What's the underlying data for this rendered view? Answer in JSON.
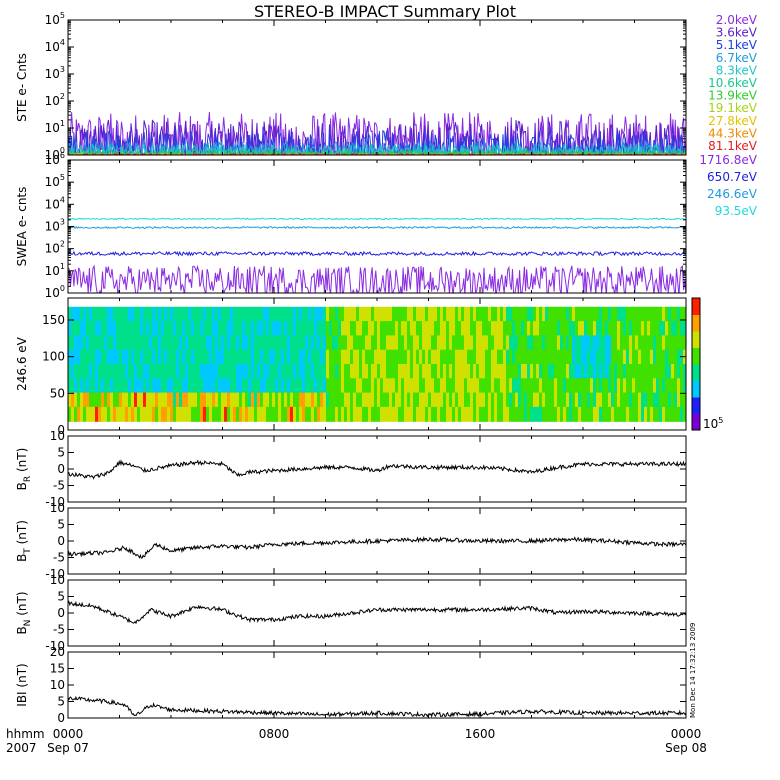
{
  "title": "STEREO-B IMPACT Summary Plot",
  "time_axis": {
    "label_top": "hhmm",
    "label_bottom": "2007",
    "ticks": [
      {
        "t": 0,
        "hhmm": "0000",
        "date": "Sep 07"
      },
      {
        "t": 8,
        "hhmm": "0800",
        "date": ""
      },
      {
        "t": 16,
        "hhmm": "1600",
        "date": ""
      },
      {
        "t": 24,
        "hhmm": "0000",
        "date": "Sep 08"
      }
    ],
    "range_hours": [
      0,
      24
    ]
  },
  "timestamp": "Mon Dec 14 17:32:13 2009",
  "colors": {
    "s_2_0": "#8a2be2",
    "s_3_6": "#5a1fcc",
    "s_5_1": "#1f3fe0",
    "s_6_7": "#1e9be0",
    "s_8_3": "#1fc8c8",
    "s_10_6": "#18c890",
    "s_13_9": "#2ecc2e",
    "s_19_1": "#a8d018",
    "s_27_8": "#e8c000",
    "s_44_3": "#f08a00",
    "s_81_1": "#e02020",
    "w_1716": "#8a2be2",
    "w_650": "#1f1fe0",
    "w_246": "#1e9be0",
    "w_93": "#1fd8d8"
  },
  "chart_data": [
    {
      "type": "line",
      "panel": "STE",
      "ylabel": "STE e- Cnts",
      "yscale": "log",
      "ylim": [
        1,
        100000
      ],
      "yticks": [
        {
          "v": 1,
          "base": "10",
          "exp": "0"
        },
        {
          "v": 10,
          "base": "10",
          "exp": "1"
        },
        {
          "v": 100,
          "base": "10",
          "exp": "2"
        },
        {
          "v": 1000,
          "base": "10",
          "exp": "3"
        },
        {
          "v": 10000,
          "base": "10",
          "exp": "4"
        },
        {
          "v": 100000,
          "base": "10",
          "exp": "5"
        }
      ],
      "series": [
        {
          "name": "2.0keV",
          "color": "#8a2be2",
          "level": 2.5,
          "noise": 1.2
        },
        {
          "name": "3.6keV",
          "color": "#5a1fcc",
          "level": 2.0,
          "noise": 1.0
        },
        {
          "name": "5.1keV",
          "color": "#1f3fe0",
          "level": 1.6,
          "noise": 0.7
        },
        {
          "name": "6.7keV",
          "color": "#1e9be0",
          "level": 1.3,
          "noise": 0.4
        },
        {
          "name": "8.3keV",
          "color": "#1fc8c8",
          "level": 1.2,
          "noise": 0.3
        },
        {
          "name": "10.6keV",
          "color": "#18c890",
          "level": 1.1,
          "noise": 0.2
        },
        {
          "name": "13.9keV",
          "color": "#2ecc2e",
          "level": 1.05,
          "noise": 0.1
        },
        {
          "name": "19.1keV",
          "color": "#a8d018",
          "level": 1.0,
          "noise": 0.05
        },
        {
          "name": "27.8keV",
          "color": "#e8c000",
          "level": 1.0,
          "noise": 0.05
        },
        {
          "name": "44.3keV",
          "color": "#f08a00",
          "level": 1.0,
          "noise": 0.05
        },
        {
          "name": "81.1keV",
          "color": "#e02020",
          "level": 1.0,
          "noise": 0.05
        }
      ]
    },
    {
      "type": "line",
      "panel": "SWEA",
      "ylabel": "SWEA e- cnts",
      "yscale": "log",
      "ylim": [
        1,
        1000000
      ],
      "yticks": [
        {
          "v": 1,
          "base": "10",
          "exp": "0"
        },
        {
          "v": 10,
          "base": "10",
          "exp": "1"
        },
        {
          "v": 100,
          "base": "10",
          "exp": "2"
        },
        {
          "v": 1000,
          "base": "10",
          "exp": "3"
        },
        {
          "v": 10000,
          "base": "10",
          "exp": "4"
        },
        {
          "v": 100000,
          "base": "10",
          "exp": "5"
        },
        {
          "v": 1000000,
          "base": "10",
          "exp": "6"
        }
      ],
      "series": [
        {
          "name": "1716.8eV",
          "color": "#8a2be2",
          "level": 4,
          "noise": 0.6,
          "spiky": true
        },
        {
          "name": "650.7eV",
          "color": "#1f1fe0",
          "level": 60,
          "noise": 0.08
        },
        {
          "name": "246.6eV",
          "color": "#1e9be0",
          "level": 900,
          "noise": 0.04
        },
        {
          "name": "93.5eV",
          "color": "#1fd8d8",
          "level": 2200,
          "noise": 0.03
        }
      ]
    },
    {
      "type": "heatmap",
      "panel": "PAD",
      "ylabel": "246.6 eV",
      "ylim": [
        0,
        180
      ],
      "yticks": [
        0,
        50,
        100,
        150
      ],
      "colorbar_label": {
        "base": "10",
        "exp": "5"
      },
      "colorscale": [
        "#7b00d4",
        "#2020ff",
        "#00c8ff",
        "#00e08a",
        "#40e000",
        "#d0e000",
        "#ffa000",
        "#ff2000"
      ]
    },
    {
      "type": "line",
      "panel": "BR",
      "ylabel": {
        "main": "B",
        "sub": "R",
        "unit": " (nT)"
      },
      "ylim": [
        -10,
        10
      ],
      "yticks": [
        -10,
        -5,
        0,
        5,
        10
      ],
      "series": [
        {
          "name": "BR",
          "color": "#000000",
          "keys": [
            [
              0,
              -1.5
            ],
            [
              1,
              -2.5
            ],
            [
              1.6,
              -1
            ],
            [
              2,
              2
            ],
            [
              2.5,
              1
            ],
            [
              3,
              -0.5
            ],
            [
              4,
              1
            ],
            [
              5,
              2
            ],
            [
              6,
              1.5
            ],
            [
              6.6,
              -2
            ],
            [
              7,
              -1
            ],
            [
              8,
              -0.5
            ],
            [
              9,
              0
            ],
            [
              10,
              0.5
            ],
            [
              11,
              0.5
            ],
            [
              12,
              -0.5
            ],
            [
              12.5,
              1
            ],
            [
              14,
              0.5
            ],
            [
              16,
              0.5
            ],
            [
              17,
              0
            ],
            [
              18,
              -1
            ],
            [
              19,
              0.5
            ],
            [
              20,
              1.5
            ],
            [
              22,
              1.5
            ],
            [
              24,
              1.5
            ]
          ]
        }
      ]
    },
    {
      "type": "line",
      "panel": "BT",
      "ylabel": {
        "main": "B",
        "sub": "T",
        "unit": " (nT)"
      },
      "ylim": [
        -10,
        10
      ],
      "yticks": [
        -10,
        -5,
        0,
        5,
        10
      ],
      "series": [
        {
          "name": "BT",
          "color": "#000000",
          "keys": [
            [
              0,
              -4
            ],
            [
              1.5,
              -3.5
            ],
            [
              2.2,
              -2
            ],
            [
              2.9,
              -5
            ],
            [
              3.4,
              -1
            ],
            [
              4,
              -3
            ],
            [
              5,
              -2
            ],
            [
              6,
              -1.5
            ],
            [
              7,
              -2
            ],
            [
              8,
              -1
            ],
            [
              10,
              -0.5
            ],
            [
              12,
              0
            ],
            [
              14,
              0.5
            ],
            [
              16,
              0
            ],
            [
              18,
              0
            ],
            [
              19.5,
              0.5
            ],
            [
              21,
              0
            ],
            [
              23,
              -1
            ],
            [
              24,
              -1
            ]
          ]
        }
      ]
    },
    {
      "type": "line",
      "panel": "BN",
      "ylabel": {
        "main": "B",
        "sub": "N",
        "unit": " (nT)"
      },
      "ylim": [
        -10,
        10
      ],
      "yticks": [
        -10,
        -5,
        0,
        5,
        10
      ],
      "series": [
        {
          "name": "BN",
          "color": "#000000",
          "keys": [
            [
              0,
              3
            ],
            [
              1,
              2
            ],
            [
              2,
              -1
            ],
            [
              2.6,
              -3
            ],
            [
              3.2,
              1
            ],
            [
              4,
              -1
            ],
            [
              5,
              2
            ],
            [
              6,
              1
            ],
            [
              7,
              -2
            ],
            [
              8,
              -2
            ],
            [
              9,
              -1
            ],
            [
              10,
              -1
            ],
            [
              11,
              0
            ],
            [
              12,
              1
            ],
            [
              14,
              1
            ],
            [
              16,
              1
            ],
            [
              18,
              1.5
            ],
            [
              19,
              0
            ],
            [
              20,
              0.5
            ],
            [
              22,
              0
            ],
            [
              24,
              -0.5
            ]
          ]
        }
      ]
    },
    {
      "type": "line",
      "panel": "BMAG",
      "ylabel": {
        "main": "IBI",
        "sub": "",
        "unit": " (nT)"
      },
      "ylim": [
        0,
        20
      ],
      "yticks": [
        0,
        5,
        10,
        15,
        20
      ],
      "series": [
        {
          "name": "B",
          "color": "#000000",
          "keys": [
            [
              0,
              6
            ],
            [
              1.5,
              5
            ],
            [
              2.2,
              4
            ],
            [
              2.6,
              0.5
            ],
            [
              3.2,
              4
            ],
            [
              4,
              2.5
            ],
            [
              6,
              2
            ],
            [
              8,
              1.5
            ],
            [
              10,
              1
            ],
            [
              12,
              1.5
            ],
            [
              14,
              1
            ],
            [
              16,
              1.2
            ],
            [
              18,
              2
            ],
            [
              20,
              1.5
            ],
            [
              22,
              1.5
            ],
            [
              24,
              1.5
            ]
          ]
        }
      ]
    }
  ]
}
